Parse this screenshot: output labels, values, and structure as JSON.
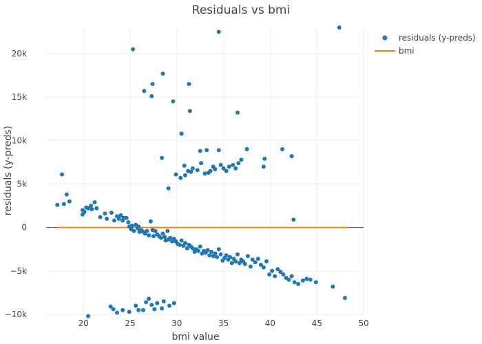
{
  "chart_data": {
    "type": "scatter",
    "title": "Residuals vs bmi",
    "xlabel": "bmi value",
    "ylabel": "residuals (y-preds)",
    "xlim": [
      16,
      50
    ],
    "ylim": [
      -10000,
      23000
    ],
    "x_ticks": [
      20,
      25,
      30,
      35,
      40,
      45,
      50
    ],
    "x_tick_labels": [
      "20",
      "25",
      "30",
      "35",
      "40",
      "45",
      "50"
    ],
    "y_ticks": [
      -10000,
      -5000,
      0,
      5000,
      10000,
      15000,
      20000
    ],
    "y_tick_labels": [
      "−10k",
      "−5k",
      "0",
      "5k",
      "10k",
      "15k",
      "20k"
    ],
    "grid": true,
    "legend_position": "top-right",
    "colors": {
      "residuals": "#1f77b4",
      "bmi": "#ff7f0e"
    },
    "series": [
      {
        "name": "residuals (y-preds)",
        "mode": "markers",
        "points": [
          [
            17.2,
            2600
          ],
          [
            17.7,
            6100
          ],
          [
            17.9,
            2700
          ],
          [
            18.2,
            3800
          ],
          [
            18.5,
            3000
          ],
          [
            19.9,
            1500
          ],
          [
            19.9,
            2000
          ],
          [
            20.1,
            1800
          ],
          [
            20.3,
            2300
          ],
          [
            20.5,
            2200
          ],
          [
            20.8,
            2500
          ],
          [
            20.9,
            2100
          ],
          [
            21.2,
            2900
          ],
          [
            21.4,
            2200
          ],
          [
            21.8,
            1200
          ],
          [
            22.3,
            1600
          ],
          [
            22.5,
            1000
          ],
          [
            23.0,
            1700
          ],
          [
            23.3,
            800
          ],
          [
            23.6,
            1300
          ],
          [
            23.8,
            1000
          ],
          [
            24.0,
            1400
          ],
          [
            24.2,
            800
          ],
          [
            24.3,
            1100
          ],
          [
            24.6,
            1100
          ],
          [
            24.8,
            600
          ],
          [
            24.9,
            100
          ],
          [
            25.1,
            -200
          ],
          [
            25.2,
            200
          ],
          [
            25.4,
            -400
          ],
          [
            25.6,
            300
          ],
          [
            25.8,
            -100
          ],
          [
            25.9,
            100
          ],
          [
            26.0,
            -500
          ],
          [
            26.2,
            -300
          ],
          [
            26.4,
            -500
          ],
          [
            26.6,
            -700
          ],
          [
            26.8,
            -400
          ],
          [
            27.0,
            -900
          ],
          [
            27.2,
            700
          ],
          [
            27.4,
            -300
          ],
          [
            27.5,
            -1000
          ],
          [
            27.7,
            -400
          ],
          [
            27.9,
            -800
          ],
          [
            28.1,
            -1000
          ],
          [
            28.3,
            -1200
          ],
          [
            28.5,
            -700
          ],
          [
            28.7,
            -1100
          ],
          [
            28.8,
            -1500
          ],
          [
            29.0,
            -400
          ],
          [
            29.1,
            -1400
          ],
          [
            29.3,
            -1200
          ],
          [
            29.5,
            -1600
          ],
          [
            29.7,
            -1300
          ],
          [
            29.9,
            -1600
          ],
          [
            30.1,
            -1900
          ],
          [
            30.3,
            -2000
          ],
          [
            30.5,
            -1500
          ],
          [
            30.7,
            -2100
          ],
          [
            30.9,
            -1800
          ],
          [
            31.1,
            -2400
          ],
          [
            31.3,
            -2000
          ],
          [
            31.5,
            -2200
          ],
          [
            31.7,
            -2400
          ],
          [
            31.9,
            -2800
          ],
          [
            32.1,
            -2500
          ],
          [
            32.3,
            -2700
          ],
          [
            32.5,
            -2200
          ],
          [
            32.7,
            -3000
          ],
          [
            32.9,
            -2700
          ],
          [
            33.1,
            -2900
          ],
          [
            33.3,
            -2600
          ],
          [
            33.5,
            -3200
          ],
          [
            33.7,
            -2800
          ],
          [
            33.9,
            -3300
          ],
          [
            34.1,
            -3000
          ],
          [
            34.3,
            -3400
          ],
          [
            34.5,
            -2500
          ],
          [
            34.7,
            -3100
          ],
          [
            34.9,
            -3800
          ],
          [
            35.1,
            -3500
          ],
          [
            35.3,
            -3200
          ],
          [
            35.5,
            -3700
          ],
          [
            35.7,
            -3400
          ],
          [
            35.9,
            -4100
          ],
          [
            36.1,
            -3600
          ],
          [
            36.3,
            -3900
          ],
          [
            36.5,
            -3100
          ],
          [
            36.7,
            -4100
          ],
          [
            36.9,
            -3700
          ],
          [
            37.1,
            -3900
          ],
          [
            37.3,
            -4200
          ],
          [
            37.6,
            -3300
          ],
          [
            37.9,
            -4500
          ],
          [
            38.1,
            -3700
          ],
          [
            38.4,
            -4000
          ],
          [
            38.7,
            -3600
          ],
          [
            39.0,
            -4300
          ],
          [
            39.3,
            -4600
          ],
          [
            39.6,
            -3900
          ],
          [
            39.9,
            -5400
          ],
          [
            40.2,
            -5000
          ],
          [
            40.5,
            -5600
          ],
          [
            40.8,
            -4800
          ],
          [
            41.1,
            -5100
          ],
          [
            41.4,
            -5400
          ],
          [
            41.7,
            -5800
          ],
          [
            42.0,
            -6000
          ],
          [
            42.3,
            -5600
          ],
          [
            42.6,
            -6300
          ],
          [
            43.0,
            -6500
          ],
          [
            43.5,
            -6100
          ],
          [
            43.9,
            -5900
          ],
          [
            44.3,
            -6000
          ],
          [
            44.9,
            -6300
          ],
          [
            46.7,
            -6800
          ],
          [
            48.0,
            -8100
          ],
          [
            25.3,
            20500
          ],
          [
            26.5,
            15700
          ],
          [
            27.4,
            16500
          ],
          [
            27.3,
            15100
          ],
          [
            28.5,
            17700
          ],
          [
            29.6,
            14500
          ],
          [
            31.3,
            16500
          ],
          [
            31.4,
            13400
          ],
          [
            36.5,
            13200
          ],
          [
            34.5,
            22500
          ],
          [
            47.4,
            23000
          ],
          [
            30.5,
            10800
          ],
          [
            28.4,
            8000
          ],
          [
            29.1,
            4500
          ],
          [
            29.9,
            6100
          ],
          [
            30.4,
            5700
          ],
          [
            30.8,
            7100
          ],
          [
            30.9,
            6000
          ],
          [
            31.2,
            6500
          ],
          [
            31.5,
            6400
          ],
          [
            31.7,
            6800
          ],
          [
            32.2,
            6600
          ],
          [
            32.5,
            8800
          ],
          [
            32.6,
            7400
          ],
          [
            33.0,
            6200
          ],
          [
            33.2,
            8900
          ],
          [
            33.4,
            6300
          ],
          [
            33.6,
            6500
          ],
          [
            33.9,
            7000
          ],
          [
            34.1,
            6700
          ],
          [
            34.5,
            8900
          ],
          [
            34.7,
            7200
          ],
          [
            35.0,
            6800
          ],
          [
            35.3,
            6500
          ],
          [
            35.6,
            7000
          ],
          [
            36.0,
            7200
          ],
          [
            36.3,
            6800
          ],
          [
            36.6,
            7400
          ],
          [
            36.9,
            7800
          ],
          [
            37.5,
            9000
          ],
          [
            39.3,
            7000
          ],
          [
            39.4,
            7900
          ],
          [
            41.3,
            9000
          ],
          [
            42.3,
            8200
          ],
          [
            42.5,
            900
          ],
          [
            20.5,
            -10200
          ],
          [
            22.9,
            -9100
          ],
          [
            23.2,
            -9400
          ],
          [
            23.6,
            -9800
          ],
          [
            24.2,
            -9500
          ],
          [
            24.9,
            -9700
          ],
          [
            25.6,
            -9000
          ],
          [
            25.9,
            -9500
          ],
          [
            26.4,
            -9500
          ],
          [
            26.7,
            -8600
          ],
          [
            27.0,
            -8200
          ],
          [
            27.3,
            -8900
          ],
          [
            27.6,
            -9400
          ],
          [
            27.9,
            -8700
          ],
          [
            28.4,
            -9300
          ],
          [
            28.6,
            -8500
          ],
          [
            29.2,
            -9000
          ],
          [
            29.7,
            -8700
          ]
        ]
      },
      {
        "name": "bmi",
        "mode": "lines",
        "points": [
          [
            17.2,
            0
          ],
          [
            48.2,
            0
          ]
        ]
      }
    ]
  }
}
